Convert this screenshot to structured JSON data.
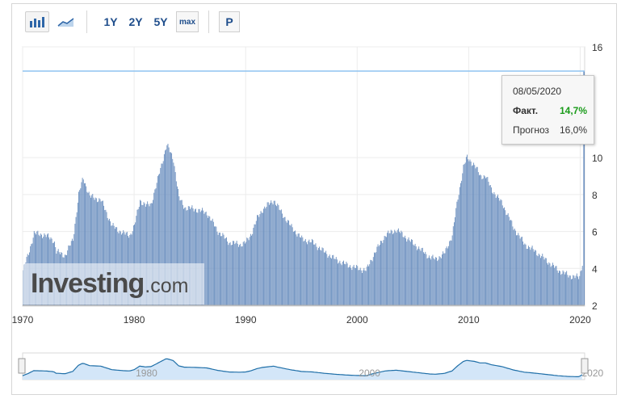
{
  "toolbar": {
    "chart_type_bar_icon": "bar-chart-icon",
    "chart_type_area_icon": "area-chart-icon",
    "ranges": [
      "1Y",
      "2Y",
      "5Y"
    ],
    "max_label": "max",
    "p_label": "P"
  },
  "tooltip": {
    "date": "08/05/2020",
    "actual_label": "Факт.",
    "actual_value": "14,7%",
    "forecast_label": "Прогноз",
    "forecast_value": "16,0%",
    "actual_color": "#1a9b1a"
  },
  "watermark": {
    "brand": "Investing",
    "suffix": ".com"
  },
  "colors": {
    "bar": "#6b8fbf",
    "forecast_line": "#8fc3f0",
    "navigator_fill": "#d3e6f8",
    "navigator_line": "#1f6fa8"
  },
  "navigator": {
    "x_labels": [
      "1980",
      "2000",
      "2020"
    ]
  },
  "chart_data": {
    "type": "bar",
    "x_unit": "year",
    "xlim": [
      1970,
      2020.4
    ],
    "ylim": [
      2,
      16
    ],
    "x_tick_labels": [
      "1970",
      "1980",
      "1990",
      "2000",
      "2010",
      "2020"
    ],
    "y_tick_labels": [
      "2",
      "4",
      "6",
      "8",
      "10",
      "16"
    ],
    "forecast_value": 16.0,
    "last_actual_value": 14.7,
    "series_points": [
      [
        1970.0,
        3.9
      ],
      [
        1970.5,
        4.8
      ],
      [
        1971.0,
        5.9
      ],
      [
        1972.0,
        5.8
      ],
      [
        1972.8,
        5.5
      ],
      [
        1973.0,
        4.9
      ],
      [
        1973.8,
        4.7
      ],
      [
        1974.5,
        5.6
      ],
      [
        1975.0,
        8.0
      ],
      [
        1975.4,
        8.9
      ],
      [
        1976.0,
        7.9
      ],
      [
        1977.0,
        7.7
      ],
      [
        1978.0,
        6.3
      ],
      [
        1979.0,
        5.9
      ],
      [
        1979.6,
        5.8
      ],
      [
        1980.0,
        6.3
      ],
      [
        1980.5,
        7.7
      ],
      [
        1981.0,
        7.4
      ],
      [
        1981.5,
        7.5
      ],
      [
        1982.0,
        8.6
      ],
      [
        1982.5,
        9.8
      ],
      [
        1982.9,
        10.7
      ],
      [
        1983.5,
        9.9
      ],
      [
        1984.0,
        7.8
      ],
      [
        1984.5,
        7.3
      ],
      [
        1985.5,
        7.2
      ],
      [
        1986.5,
        7.0
      ],
      [
        1987.5,
        6.0
      ],
      [
        1988.5,
        5.4
      ],
      [
        1989.5,
        5.3
      ],
      [
        1990.0,
        5.4
      ],
      [
        1990.5,
        5.9
      ],
      [
        1991.0,
        6.7
      ],
      [
        1991.5,
        7.2
      ],
      [
        1992.5,
        7.7
      ],
      [
        1993.0,
        7.2
      ],
      [
        1994.0,
        6.3
      ],
      [
        1995.0,
        5.6
      ],
      [
        1996.0,
        5.4
      ],
      [
        1997.0,
        4.9
      ],
      [
        1998.0,
        4.5
      ],
      [
        1999.0,
        4.2
      ],
      [
        2000.0,
        4.0
      ],
      [
        2000.8,
        3.9
      ],
      [
        2001.5,
        4.8
      ],
      [
        2002.5,
        5.8
      ],
      [
        2003.5,
        6.1
      ],
      [
        2004.5,
        5.6
      ],
      [
        2005.5,
        5.1
      ],
      [
        2006.5,
        4.6
      ],
      [
        2007.0,
        4.5
      ],
      [
        2007.8,
        4.8
      ],
      [
        2008.5,
        5.8
      ],
      [
        2009.0,
        7.8
      ],
      [
        2009.5,
        9.5
      ],
      [
        2009.8,
        10.0
      ],
      [
        2010.5,
        9.6
      ],
      [
        2011.0,
        9.0
      ],
      [
        2011.5,
        9.0
      ],
      [
        2012.0,
        8.3
      ],
      [
        2013.0,
        7.5
      ],
      [
        2014.0,
        6.2
      ],
      [
        2015.0,
        5.3
      ],
      [
        2016.0,
        4.9
      ],
      [
        2017.0,
        4.4
      ],
      [
        2018.0,
        3.9
      ],
      [
        2019.0,
        3.6
      ],
      [
        2019.9,
        3.5
      ],
      [
        2020.2,
        4.4
      ]
    ]
  }
}
